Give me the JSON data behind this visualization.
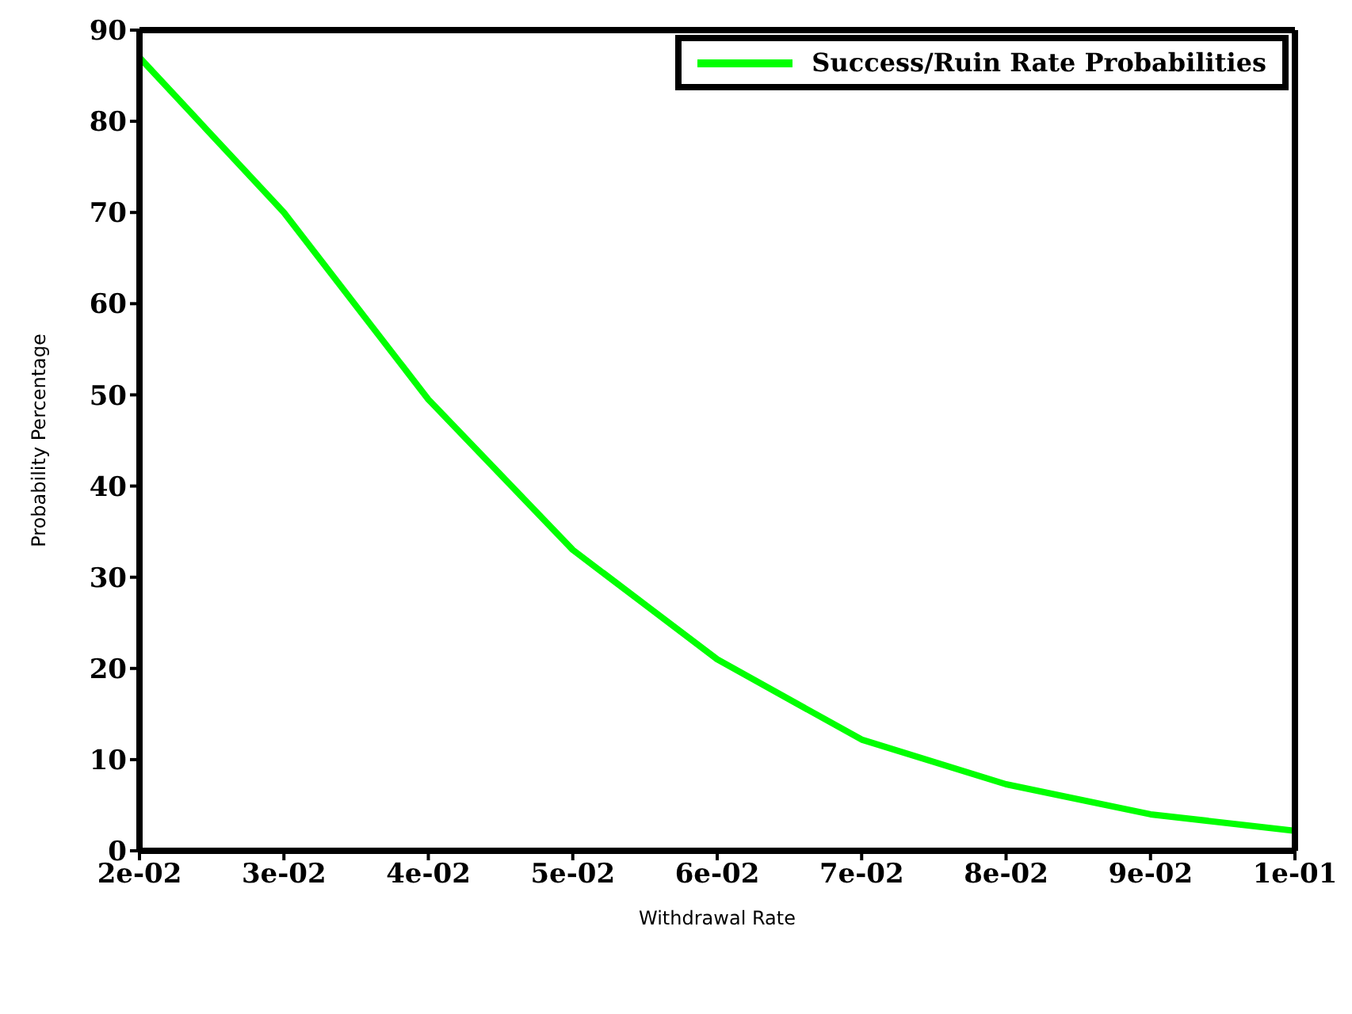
{
  "chart_data": {
    "type": "line",
    "xlabel": "Withdrawal Rate",
    "ylabel": "Probability Percentage",
    "x": [
      0.02,
      0.03,
      0.04,
      0.05,
      0.06,
      0.07,
      0.08,
      0.09,
      0.1
    ],
    "series": [
      {
        "name": "Success/Ruin Rate Probabilities",
        "color": "#00ff00",
        "values": [
          87,
          70,
          49.5,
          33,
          21,
          12.2,
          7.3,
          4,
          2.2
        ]
      }
    ],
    "xlim": [
      0.02,
      0.1
    ],
    "xticks": [
      {
        "value": 0.02,
        "label": "2e-02"
      },
      {
        "value": 0.03,
        "label": "3e-02"
      },
      {
        "value": 0.04,
        "label": "4e-02"
      },
      {
        "value": 0.05,
        "label": "5e-02"
      },
      {
        "value": 0.06,
        "label": "6e-02"
      },
      {
        "value": 0.07,
        "label": "7e-02"
      },
      {
        "value": 0.08,
        "label": "8e-02"
      },
      {
        "value": 0.09,
        "label": "9e-02"
      },
      {
        "value": 0.1,
        "label": "1e-01"
      }
    ],
    "ylim": [
      0,
      90
    ],
    "yticks": [
      0,
      10,
      20,
      30,
      40,
      50,
      60,
      70,
      80,
      90
    ],
    "grid": false,
    "legend": "top right",
    "marker": "none",
    "line_style": "solid"
  }
}
